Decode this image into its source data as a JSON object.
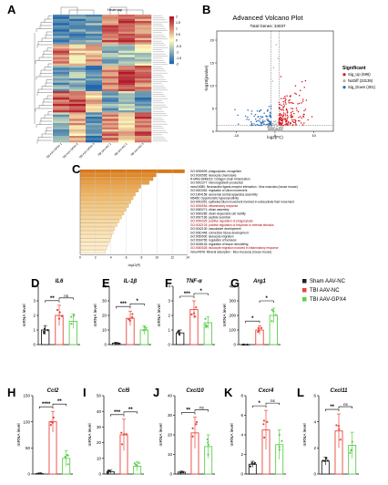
{
  "panels": {
    "A": "A",
    "B": "B",
    "C": "C",
    "D": "D",
    "E": "E",
    "F": "F",
    "G": "G",
    "H": "H",
    "I": "I",
    "J": "J",
    "K": "K",
    "L": "L"
  },
  "heatmap": {
    "title": "Heatmap",
    "colorbar_ticks": [
      "2",
      "1.5",
      "1",
      "0.5",
      "0",
      "-0.5",
      "-1",
      "-1.5",
      "-2"
    ],
    "sample_labels": [
      "TBI AAV-GPX4-1",
      "TBI AAV-GPX4-2",
      "TBI AAV-GPX4-3",
      "TBI AAV-NC-1",
      "TBI AAV-NC-2",
      "TBI AAV-NC-3"
    ],
    "colors": {
      "high": "#b2182b",
      "mid": "#ffffbf",
      "low": "#2166ac"
    }
  },
  "volcano": {
    "title": "Advanced Volcano Plot",
    "subtitle": "Total Genes: 34037",
    "xlabel": "log2(FC)",
    "ylabel": "-log10(pvalue)",
    "xticks": [
      "-10",
      "0",
      "10"
    ],
    "yticks": [
      "0",
      "5",
      "10",
      "15",
      "20"
    ],
    "legend_title": "Significant",
    "legend": [
      {
        "label": "Sig_Up (596)",
        "color": "#d7191c"
      },
      {
        "label": "NoDiff (33139)",
        "color": "#b0b0b0"
      },
      {
        "label": "Sig_Down (301)",
        "color": "#2b6cb0"
      }
    ]
  },
  "enrichment": {
    "xlabel": "-log10(P)",
    "xticks": [
      "0",
      "2",
      "4",
      "6",
      "8",
      "10",
      "12",
      "14"
    ],
    "terms": [
      {
        "label": "GO:0006909: phagocytosis, recognition",
        "value": 13.6,
        "color": "#d97a1c"
      },
      {
        "label": "GO:0030595: leukocyte chemotaxis",
        "value": 9.9,
        "color": "#e08a2c"
      },
      {
        "label": "R-MMU-8948216: Collagen chain trimerization",
        "value": 9.5,
        "color": "#e4963a"
      },
      {
        "label": "GO:0002377: immunoglobulin production",
        "value": 9.0,
        "color": "#e79f46"
      },
      {
        "label": "mmu04080: Neuroactive ligand-receptor interaction - Mus musculus (house mouse)",
        "value": 7.9,
        "color": "#eaa852"
      },
      {
        "label": "GO:0003352: regulation of cilium movement",
        "value": 7.6,
        "color": "#ecb05e"
      },
      {
        "label": "GO:1904158: axonemal central apparatus assembly",
        "value": 7.2,
        "color": "#eeb868"
      },
      {
        "label": "M5486: Opportunistic hypersensitivity",
        "value": 6.9,
        "color": "#efbe72"
      },
      {
        "label": "GO:0003351: epithelial cilium movement involved in extracellular fluid movement",
        "value": 6.6,
        "color": "#f0c47c"
      },
      {
        "label": "GO:0006954: inflammatory response",
        "value": 6.3,
        "color": "#f1c985"
      },
      {
        "label": "GO:0060271: cilium assembly",
        "value": 6.0,
        "color": "#f2cd8d"
      },
      {
        "label": "GO:0060285: cilium-dependent cell motility",
        "value": 5.7,
        "color": "#f3d195"
      },
      {
        "label": "GO:0007166: peptide secretion",
        "value": 5.4,
        "color": "#f4d59d"
      },
      {
        "label": "GO:0090325: positive regulation of phagocytosis",
        "value": 5.1,
        "color": "#f5d9a4"
      },
      {
        "label": "GO:0032103: positive regulation of response to external stimulus",
        "value": 4.8,
        "color": "#f6ddab"
      },
      {
        "label": "GO:0042130: vasculature development",
        "value": 4.5,
        "color": "#f7e0b2"
      },
      {
        "label": "GO:0061448: connective tissue development",
        "value": 4.3,
        "color": "#f8e3b8"
      },
      {
        "label": "GO:0050900: leukocyte migration",
        "value": 4.1,
        "color": "#f8e6be"
      },
      {
        "label": "GO:0034765: regulation of behavior",
        "value": 3.9,
        "color": "#f9e9c4"
      },
      {
        "label": "GO:0048145: regulation of tissue remodeling",
        "value": 3.7,
        "color": "#faecca"
      },
      {
        "label": "GO:0060528: leukocyte migration involved in inflammatory response",
        "value": 3.5,
        "color": "#faeed0"
      },
      {
        "label": "mmu04978: Mineral absorption - Mus musculus (house mouse)",
        "value": 3.3,
        "color": "#fbf1d6"
      }
    ]
  },
  "bars_legend": [
    {
      "label": "Sham AAV-NC",
      "color": "#222222"
    },
    {
      "label": "TBI AAV-NC",
      "color": "#e8453c"
    },
    {
      "label": "TBI AAV-GPX4",
      "color": "#5ccf4c"
    }
  ],
  "ylabel": "mRNA level",
  "chart_data": [
    {
      "type": "bar",
      "panel": "D",
      "title": "IL6",
      "categories": [
        "Sham AAV-NC",
        "TBI AAV-NC",
        "TBI AAV-GPX4"
      ],
      "values": [
        1.0,
        2.0,
        1.6
      ],
      "errors": [
        0.3,
        0.7,
        0.5
      ],
      "ylim": [
        0,
        4
      ],
      "yticks": [
        "0",
        "1",
        "2",
        "3",
        "4"
      ],
      "ylabel": "mRNA level",
      "sig": [
        {
          "from": 0,
          "to": 1,
          "label": "**"
        },
        {
          "from": 1,
          "to": 2,
          "label": "ns"
        }
      ]
    },
    {
      "type": "bar",
      "panel": "E",
      "title": "IL-1β",
      "categories": [
        "Sham AAV-NC",
        "TBI AAV-NC",
        "TBI AAV-GPX4"
      ],
      "values": [
        1.0,
        18.0,
        10.0
      ],
      "errors": [
        0.5,
        5.0,
        3.0
      ],
      "ylim": [
        0,
        40
      ],
      "yticks": [
        "0",
        "10",
        "20",
        "30",
        "40"
      ],
      "ylabel": "mRNA level",
      "sig": [
        {
          "from": 0,
          "to": 1,
          "label": "***"
        },
        {
          "from": 1,
          "to": 2,
          "label": "*"
        }
      ]
    },
    {
      "type": "bar",
      "panel": "F",
      "title": "TNF-α",
      "categories": [
        "Sham AAV-NC",
        "TBI AAV-NC",
        "TBI AAV-GPX4"
      ],
      "values": [
        0.8,
        2.4,
        1.5
      ],
      "errors": [
        0.2,
        0.6,
        0.4
      ],
      "ylim": [
        0,
        4
      ],
      "yticks": [
        "0",
        "1",
        "2",
        "3",
        "4"
      ],
      "ylabel": "mRNA level",
      "sig": [
        {
          "from": 0,
          "to": 1,
          "label": "***"
        },
        {
          "from": 1,
          "to": 2,
          "label": "*"
        }
      ]
    },
    {
      "type": "bar",
      "panel": "G",
      "title": "Arg1",
      "categories": [
        "Sham AAV-NC",
        "TBI AAV-NC",
        "TBI AAV-GPX4"
      ],
      "values": [
        0.5,
        100,
        200
      ],
      "errors": [
        0.2,
        30,
        50
      ],
      "ylim": [
        0,
        400
      ],
      "yticks": [
        "0",
        "100",
        "200",
        "300",
        "400"
      ],
      "ylabel": "mRNA level",
      "sig": [
        {
          "from": 0,
          "to": 1,
          "label": "*"
        },
        {
          "from": 1,
          "to": 2,
          "label": "*"
        }
      ]
    },
    {
      "type": "bar",
      "panel": "H",
      "title": "Ccl2",
      "categories": [
        "Sham AAV-NC",
        "TBI AAV-NC",
        "TBI AAV-GPX4"
      ],
      "values": [
        1,
        100,
        30
      ],
      "errors": [
        0.5,
        20,
        15
      ],
      "ylim": [
        0,
        150
      ],
      "yticks": [
        "0",
        "50",
        "100",
        "150"
      ],
      "ylabel": "mRNA level",
      "sig": [
        {
          "from": 0,
          "to": 1,
          "label": "****"
        },
        {
          "from": 1,
          "to": 2,
          "label": "**"
        }
      ]
    },
    {
      "type": "bar",
      "panel": "I",
      "title": "Ccl5",
      "categories": [
        "Sham AAV-NC",
        "TBI AAV-NC",
        "TBI AAV-GPX4"
      ],
      "values": [
        1.5,
        25,
        5
      ],
      "errors": [
        1.0,
        10,
        3
      ],
      "ylim": [
        0,
        50
      ],
      "yticks": [
        "0",
        "10",
        "20",
        "30",
        "40",
        "50"
      ],
      "ylabel": "mRNA level",
      "sig": [
        {
          "from": 0,
          "to": 1,
          "label": "***"
        },
        {
          "from": 1,
          "to": 2,
          "label": "**"
        }
      ]
    },
    {
      "type": "bar",
      "panel": "J",
      "title": "Cxcl10",
      "categories": [
        "Sham AAV-NC",
        "TBI AAV-NC",
        "TBI AAV-GPX4"
      ],
      "values": [
        1,
        21,
        14
      ],
      "errors": [
        0.5,
        8,
        6
      ],
      "ylim": [
        0,
        40
      ],
      "yticks": [
        "0",
        "10",
        "20",
        "30",
        "40"
      ],
      "ylabel": "mRNA level",
      "sig": [
        {
          "from": 0,
          "to": 1,
          "label": "**"
        },
        {
          "from": 1,
          "to": 2,
          "label": "ns"
        }
      ]
    },
    {
      "type": "bar",
      "panel": "K",
      "title": "Cxcr4",
      "categories": [
        "Sham AAV-NC",
        "TBI AAV-NC",
        "TBI AAV-GPX4"
      ],
      "values": [
        1,
        4.5,
        3
      ],
      "errors": [
        0.3,
        2.0,
        1.5
      ],
      "ylim": [
        0,
        8
      ],
      "yticks": [
        "0",
        "2",
        "4",
        "6",
        "8"
      ],
      "ylabel": "mRNA level",
      "sig": [
        {
          "from": 0,
          "to": 1,
          "label": "*"
        },
        {
          "from": 1,
          "to": 2,
          "label": "ns"
        }
      ]
    },
    {
      "type": "bar",
      "panel": "L",
      "title": "Cxcl11",
      "categories": [
        "Sham AAV-NC",
        "TBI AAV-NC",
        "TBI AAV-GPX4"
      ],
      "values": [
        1,
        3.3,
        2.2
      ],
      "errors": [
        0.3,
        1.3,
        1.0
      ],
      "ylim": [
        0,
        6
      ],
      "yticks": [
        "0",
        "2",
        "4",
        "6"
      ],
      "ylabel": "mRNA level",
      "sig": [
        {
          "from": 0,
          "to": 1,
          "label": "**"
        },
        {
          "from": 1,
          "to": 2,
          "label": "ns"
        }
      ]
    }
  ]
}
